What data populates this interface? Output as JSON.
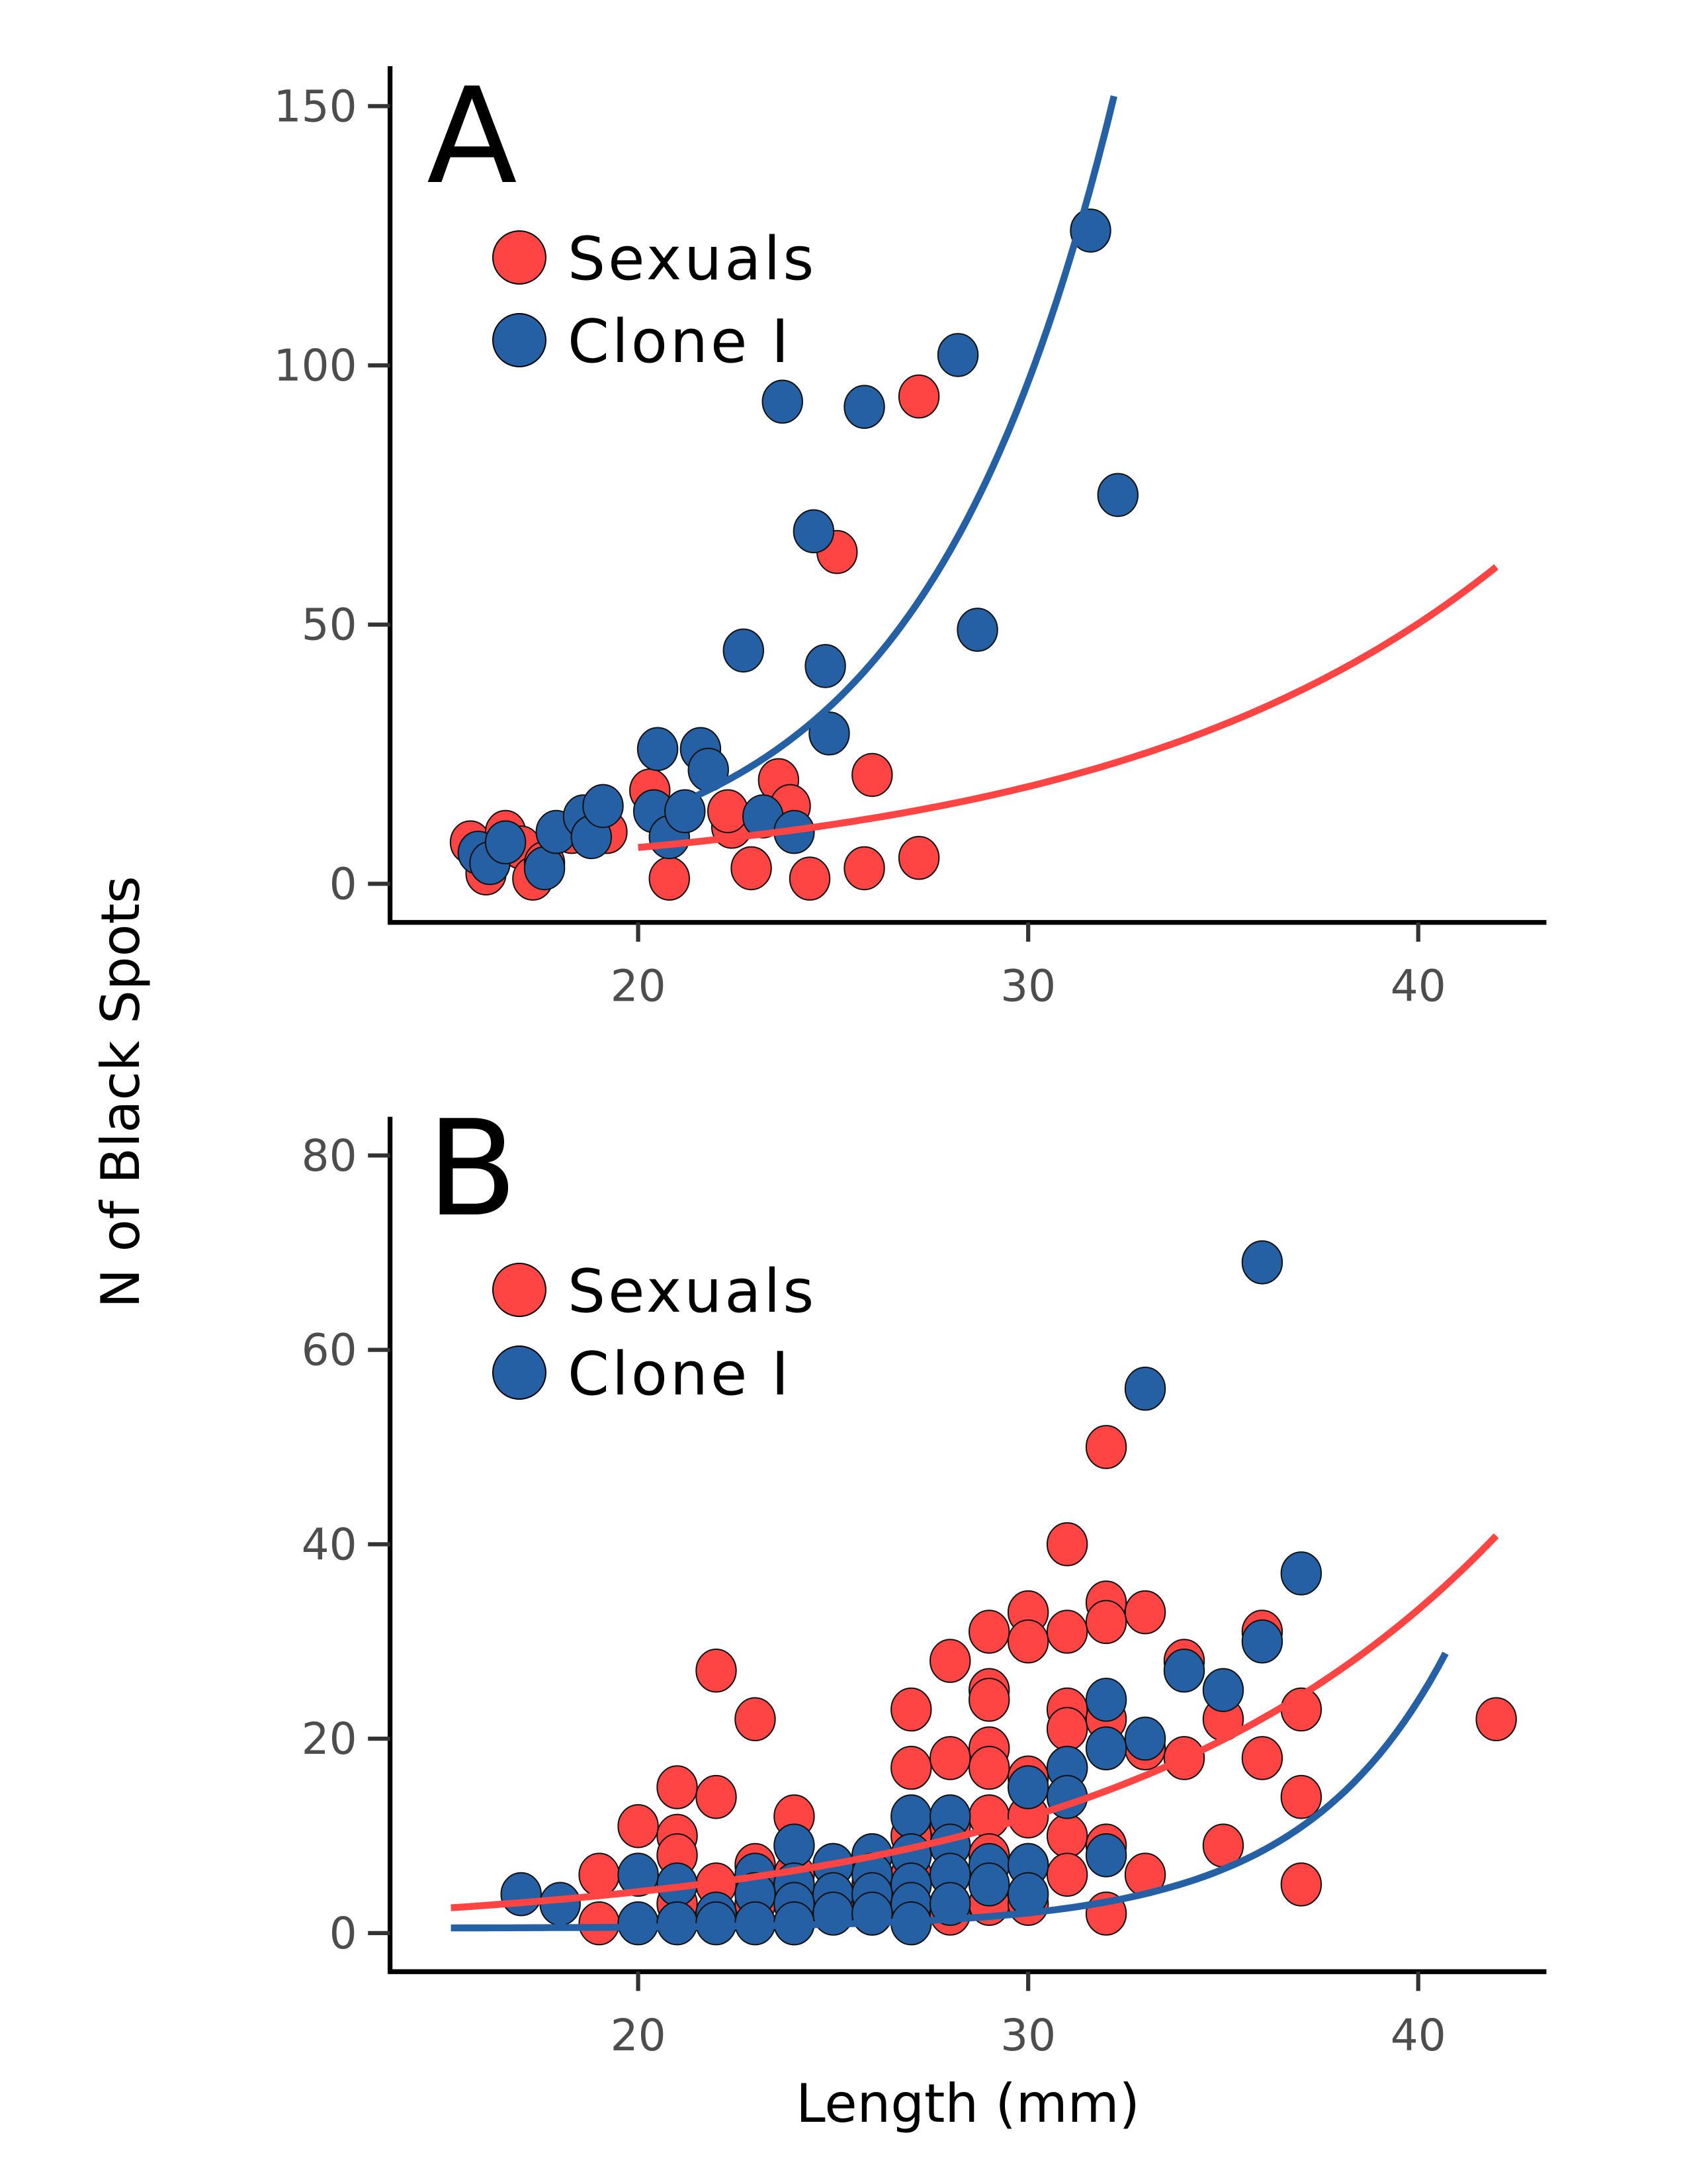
{
  "figure": {
    "ylabel": "N of Black Spots",
    "xlabel": "Length (mm)"
  },
  "colors": {
    "sexuals": "#FF4444",
    "clone": "#2660A4"
  },
  "chart_data": [
    {
      "type": "scatter",
      "panel": "A",
      "title": "A",
      "xlabel": "Length (mm)",
      "ylabel": "N of Black Spots",
      "xlim": [
        14,
        43.5
      ],
      "ylim": [
        -5,
        158
      ],
      "xticks": [
        20,
        30,
        40
      ],
      "yticks": [
        0,
        50,
        100,
        150
      ],
      "grid": false,
      "legend": {
        "placement": "top-left",
        "entries": [
          "Sexuals",
          "Clone I"
        ]
      },
      "series": [
        {
          "name": "Sexuals",
          "color_key": "sexuals",
          "points": [
            [
              15.7,
              8
            ],
            [
              16.1,
              2
            ],
            [
              16.6,
              10
            ],
            [
              17.0,
              7
            ],
            [
              17.3,
              1
            ],
            [
              17.6,
              4
            ],
            [
              18.3,
              10
            ],
            [
              19.2,
              10
            ],
            [
              20.3,
              18
            ],
            [
              20.8,
              1
            ],
            [
              22.4,
              11
            ],
            [
              22.3,
              14
            ],
            [
              22.9,
              3
            ],
            [
              23.6,
              20
            ],
            [
              23.9,
              15
            ],
            [
              24.4,
              1
            ],
            [
              25.1,
              64
            ],
            [
              25.8,
              3
            ],
            [
              26.0,
              21
            ],
            [
              27.2,
              94
            ],
            [
              27.2,
              5
            ]
          ]
        },
        {
          "name": "Clone I",
          "color_key": "clone",
          "points": [
            [
              15.9,
              6
            ],
            [
              16.2,
              4
            ],
            [
              16.6,
              8
            ],
            [
              17.6,
              3
            ],
            [
              17.9,
              10
            ],
            [
              18.6,
              13
            ],
            [
              18.8,
              9
            ],
            [
              19.1,
              15
            ],
            [
              20.5,
              26
            ],
            [
              20.4,
              14
            ],
            [
              20.8,
              9
            ],
            [
              21.2,
              14
            ],
            [
              21.6,
              26
            ],
            [
              21.8,
              22
            ],
            [
              22.7,
              45
            ],
            [
              23.2,
              13
            ],
            [
              23.7,
              93
            ],
            [
              24.0,
              10
            ],
            [
              24.5,
              68
            ],
            [
              24.8,
              42
            ],
            [
              24.9,
              29
            ],
            [
              25.8,
              92
            ],
            [
              28.2,
              102
            ],
            [
              28.7,
              49
            ],
            [
              31.6,
              126
            ],
            [
              32.3,
              75
            ]
          ]
        }
      ],
      "fits": [
        {
          "name": "Sexuals fit",
          "color_key": "sexuals",
          "x_range": [
            20,
            42
          ],
          "model": "exp",
          "a": 7.0,
          "b": 0.0985,
          "x0": 20
        },
        {
          "name": "Clone I fit",
          "color_key": "clone",
          "x_range": [
            21.5,
            32.2
          ],
          "model": "exp",
          "a": 17.0,
          "b": 0.2047,
          "x0": 21.5
        }
      ]
    },
    {
      "type": "scatter",
      "panel": "B",
      "title": "B",
      "xlabel": "Length (mm)",
      "ylabel": "N of Black Spots",
      "xlim": [
        14,
        43.5
      ],
      "ylim": [
        -4,
        84
      ],
      "xticks": [
        20,
        30,
        40
      ],
      "yticks": [
        0,
        20,
        40,
        60,
        80
      ],
      "grid": false,
      "legend": {
        "placement": "top-left",
        "entries": [
          "Sexuals",
          "Clone I"
        ]
      },
      "series": [
        {
          "name": "Sexuals",
          "color_key": "sexuals",
          "points": [
            [
              19,
              6
            ],
            [
              19,
              1
            ],
            [
              20,
              11
            ],
            [
              21,
              15
            ],
            [
              21,
              10
            ],
            [
              21,
              8
            ],
            [
              21,
              3
            ],
            [
              22,
              27
            ],
            [
              22,
              14
            ],
            [
              22,
              5
            ],
            [
              23,
              22
            ],
            [
              23,
              7
            ],
            [
              23,
              3
            ],
            [
              24,
              12
            ],
            [
              24,
              6
            ],
            [
              24,
              1
            ],
            [
              25,
              7
            ],
            [
              25,
              3
            ],
            [
              26,
              8
            ],
            [
              26,
              5
            ],
            [
              26,
              2
            ],
            [
              27,
              23
            ],
            [
              27,
              17
            ],
            [
              27,
              10
            ],
            [
              27,
              6
            ],
            [
              27,
              3
            ],
            [
              28,
              28
            ],
            [
              28,
              18
            ],
            [
              28,
              11
            ],
            [
              28,
              6
            ],
            [
              28,
              2
            ],
            [
              29,
              31
            ],
            [
              29,
              25
            ],
            [
              29,
              24
            ],
            [
              29,
              19
            ],
            [
              29,
              17
            ],
            [
              29,
              12
            ],
            [
              29,
              8
            ],
            [
              29,
              3
            ],
            [
              30,
              33
            ],
            [
              30,
              30
            ],
            [
              30,
              16
            ],
            [
              30,
              12
            ],
            [
              30,
              7
            ],
            [
              30,
              3
            ],
            [
              31,
              40
            ],
            [
              31,
              31
            ],
            [
              31,
              23
            ],
            [
              31,
              21
            ],
            [
              31,
              17
            ],
            [
              31,
              10
            ],
            [
              31,
              6
            ],
            [
              32,
              50
            ],
            [
              32,
              34
            ],
            [
              32,
              32
            ],
            [
              32,
              22
            ],
            [
              32,
              9
            ],
            [
              32,
              2
            ],
            [
              33,
              33
            ],
            [
              33,
              19
            ],
            [
              33,
              6
            ],
            [
              34,
              28
            ],
            [
              34,
              18
            ],
            [
              35,
              22
            ],
            [
              35,
              9
            ],
            [
              36,
              31
            ],
            [
              36,
              18
            ],
            [
              37,
              23
            ],
            [
              37,
              14
            ],
            [
              37,
              5
            ],
            [
              42,
              22
            ]
          ]
        },
        {
          "name": "Clone I",
          "color_key": "clone",
          "points": [
            [
              17,
              4
            ],
            [
              18,
              3
            ],
            [
              20,
              6
            ],
            [
              20,
              1
            ],
            [
              21,
              5
            ],
            [
              21,
              1
            ],
            [
              22,
              2
            ],
            [
              22,
              1
            ],
            [
              23,
              6
            ],
            [
              23,
              4
            ],
            [
              23,
              1
            ],
            [
              24,
              9
            ],
            [
              24,
              5
            ],
            [
              24,
              3
            ],
            [
              24,
              1
            ],
            [
              25,
              7
            ],
            [
              25,
              4
            ],
            [
              25,
              2
            ],
            [
              26,
              8
            ],
            [
              26,
              6
            ],
            [
              26,
              4
            ],
            [
              26,
              2
            ],
            [
              27,
              12
            ],
            [
              27,
              8
            ],
            [
              27,
              5
            ],
            [
              27,
              3
            ],
            [
              27,
              1
            ],
            [
              28,
              12
            ],
            [
              28,
              9
            ],
            [
              28,
              6
            ],
            [
              28,
              3
            ],
            [
              29,
              7
            ],
            [
              29,
              5
            ],
            [
              30,
              15
            ],
            [
              30,
              7
            ],
            [
              30,
              4
            ],
            [
              31,
              17
            ],
            [
              31,
              14
            ],
            [
              32,
              24
            ],
            [
              32,
              19
            ],
            [
              32,
              8
            ],
            [
              33,
              20
            ],
            [
              33,
              56
            ],
            [
              34,
              27
            ],
            [
              35,
              25
            ],
            [
              36,
              30
            ],
            [
              36,
              69
            ],
            [
              37,
              37
            ]
          ]
        }
      ],
      "fits": [
        {
          "name": "Sexuals fit",
          "color_key": "sexuals",
          "x_range": [
            15.2,
            42
          ],
          "model": "exp",
          "a": 2.6,
          "b": 0.1028,
          "x0": 15.2
        },
        {
          "name": "Clone I fit",
          "color_key": "clone",
          "x_range": [
            15.2,
            40.7
          ],
          "model": "exp_offset",
          "a": 0.7,
          "b": 0.27,
          "x0": 27,
          "c": 0.5
        }
      ]
    }
  ]
}
